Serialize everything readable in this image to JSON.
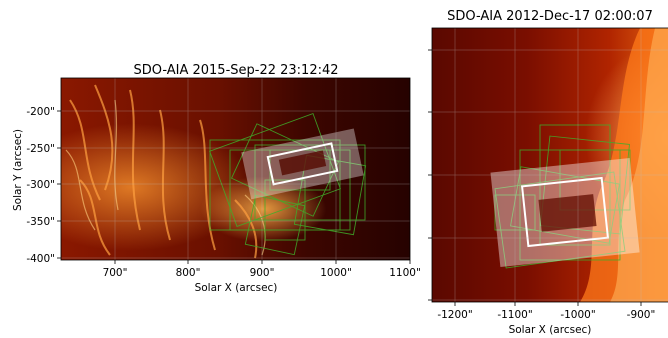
{
  "panels": [
    {
      "title": "SDO-AIA   2015-Sep-22 23:12:42",
      "xlabel": "Solar X (arcsec)",
      "ylabel": "Solar Y (arcsec)",
      "xticks": [
        "700\"",
        "800\"",
        "900\"",
        "1000\"",
        "1100\""
      ],
      "yticks": [
        "-200\"",
        "-250\"",
        "-300\"",
        "-350\"",
        "-400\""
      ]
    },
    {
      "title": "SDO-AIA   2012-Dec-17 02:00:07",
      "xlabel": "Solar X (arcsec)",
      "xticks": [
        "-1200\"",
        "-1100\"",
        "-1000\"",
        "-900\""
      ]
    }
  ],
  "colors": {
    "solar_dark": "#3a0000",
    "solar_mid": "#a02000",
    "solar_bright": "#ff8a1a",
    "fov_box": "#ffffff",
    "raster_boxes": "#3fae2a"
  }
}
